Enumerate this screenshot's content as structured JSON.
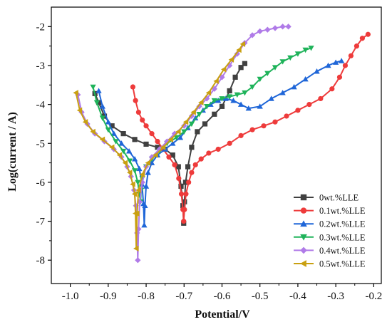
{
  "chart_data": {
    "type": "line",
    "xlabel": "Potential/V",
    "ylabel": "Log(current / A)",
    "xlim": [
      -1.05,
      -0.18
    ],
    "ylim": [
      -8.6,
      -1.5
    ],
    "x_ticks": [
      -1.0,
      -0.9,
      -0.8,
      -0.7,
      -0.6,
      -0.5,
      -0.4,
      -0.3,
      -0.2
    ],
    "x_tick_labels": [
      "-1.0",
      "-0.9",
      "-0.8",
      "-0.7",
      "-0.6",
      "-0.5",
      "-0.4",
      "-0.3",
      "-0.2"
    ],
    "y_ticks": [
      -8,
      -7,
      -6,
      -5,
      -4,
      -3,
      -2
    ],
    "y_tick_labels": [
      "-8",
      "-7",
      "-6",
      "-5",
      "-4",
      "-3",
      "-2"
    ],
    "legend_position": "bottom-right",
    "grid": false,
    "series": [
      {
        "name": "0wt.%LLE",
        "color": "#404040",
        "marker": "square",
        "points": [
          [
            -0.935,
            -3.72
          ],
          [
            -0.925,
            -3.95
          ],
          [
            -0.91,
            -4.3
          ],
          [
            -0.89,
            -4.55
          ],
          [
            -0.86,
            -4.75
          ],
          [
            -0.83,
            -4.9
          ],
          [
            -0.8,
            -5.02
          ],
          [
            -0.77,
            -5.1
          ],
          [
            -0.75,
            -5.15
          ],
          [
            -0.73,
            -5.3
          ],
          [
            -0.715,
            -5.6
          ],
          [
            -0.708,
            -6.1
          ],
          [
            -0.703,
            -6.6
          ],
          [
            -0.701,
            -7.05
          ],
          [
            -0.699,
            -6.5
          ],
          [
            -0.696,
            -6.0
          ],
          [
            -0.69,
            -5.6
          ],
          [
            -0.68,
            -5.1
          ],
          [
            -0.665,
            -4.7
          ],
          [
            -0.645,
            -4.5
          ],
          [
            -0.62,
            -4.25
          ],
          [
            -0.6,
            -4.05
          ],
          [
            -0.58,
            -3.65
          ],
          [
            -0.565,
            -3.3
          ],
          [
            -0.55,
            -3.05
          ],
          [
            -0.54,
            -2.95
          ]
        ]
      },
      {
        "name": "0.1wt.%LLE",
        "color": "#ee3b3b",
        "marker": "circle",
        "points": [
          [
            -0.835,
            -3.55
          ],
          [
            -0.828,
            -3.9
          ],
          [
            -0.82,
            -4.2
          ],
          [
            -0.81,
            -4.4
          ],
          [
            -0.8,
            -4.55
          ],
          [
            -0.785,
            -4.75
          ],
          [
            -0.77,
            -4.95
          ],
          [
            -0.755,
            -5.15
          ],
          [
            -0.74,
            -5.35
          ],
          [
            -0.725,
            -5.55
          ],
          [
            -0.714,
            -5.9
          ],
          [
            -0.707,
            -6.3
          ],
          [
            -0.703,
            -6.7
          ],
          [
            -0.701,
            -7.0
          ],
          [
            -0.699,
            -6.7
          ],
          [
            -0.695,
            -6.3
          ],
          [
            -0.688,
            -6.0
          ],
          [
            -0.68,
            -5.75
          ],
          [
            -0.67,
            -5.55
          ],
          [
            -0.655,
            -5.4
          ],
          [
            -0.635,
            -5.25
          ],
          [
            -0.61,
            -5.15
          ],
          [
            -0.58,
            -5.0
          ],
          [
            -0.55,
            -4.8
          ],
          [
            -0.52,
            -4.65
          ],
          [
            -0.49,
            -4.55
          ],
          [
            -0.46,
            -4.45
          ],
          [
            -0.43,
            -4.3
          ],
          [
            -0.4,
            -4.15
          ],
          [
            -0.37,
            -4.0
          ],
          [
            -0.34,
            -3.85
          ],
          [
            -0.31,
            -3.6
          ],
          [
            -0.29,
            -3.3
          ],
          [
            -0.275,
            -3.0
          ],
          [
            -0.26,
            -2.75
          ],
          [
            -0.245,
            -2.5
          ],
          [
            -0.23,
            -2.3
          ],
          [
            -0.215,
            -2.2
          ]
        ]
      },
      {
        "name": "0.2wt.%LLE",
        "color": "#1f66d8",
        "marker": "triangle-up",
        "points": [
          [
            -0.925,
            -3.65
          ],
          [
            -0.915,
            -4.05
          ],
          [
            -0.9,
            -4.45
          ],
          [
            -0.885,
            -4.75
          ],
          [
            -0.865,
            -5.0
          ],
          [
            -0.845,
            -5.2
          ],
          [
            -0.83,
            -5.4
          ],
          [
            -0.818,
            -5.65
          ],
          [
            -0.811,
            -6.05
          ],
          [
            -0.807,
            -6.55
          ],
          [
            -0.805,
            -7.1
          ],
          [
            -0.803,
            -6.6
          ],
          [
            -0.8,
            -6.1
          ],
          [
            -0.795,
            -5.75
          ],
          [
            -0.785,
            -5.5
          ],
          [
            -0.77,
            -5.3
          ],
          [
            -0.75,
            -5.15
          ],
          [
            -0.73,
            -5.0
          ],
          [
            -0.71,
            -4.85
          ],
          [
            -0.69,
            -4.6
          ],
          [
            -0.67,
            -4.35
          ],
          [
            -0.65,
            -4.15
          ],
          [
            -0.63,
            -4.0
          ],
          [
            -0.61,
            -3.9
          ],
          [
            -0.59,
            -3.85
          ],
          [
            -0.57,
            -3.9
          ],
          [
            -0.55,
            -4.0
          ],
          [
            -0.53,
            -4.1
          ],
          [
            -0.5,
            -4.05
          ],
          [
            -0.47,
            -3.85
          ],
          [
            -0.44,
            -3.7
          ],
          [
            -0.41,
            -3.55
          ],
          [
            -0.38,
            -3.35
          ],
          [
            -0.35,
            -3.15
          ],
          [
            -0.32,
            -3.0
          ],
          [
            -0.3,
            -2.92
          ],
          [
            -0.285,
            -2.88
          ]
        ]
      },
      {
        "name": "0.3wt.%LLE",
        "color": "#1fb35a",
        "marker": "triangle-down",
        "points": [
          [
            -0.94,
            -3.55
          ],
          [
            -0.93,
            -3.95
          ],
          [
            -0.915,
            -4.35
          ],
          [
            -0.9,
            -4.65
          ],
          [
            -0.88,
            -4.95
          ],
          [
            -0.86,
            -5.2
          ],
          [
            -0.843,
            -5.45
          ],
          [
            -0.83,
            -5.7
          ],
          [
            -0.822,
            -6.0
          ],
          [
            -0.818,
            -6.3
          ],
          [
            -0.815,
            -6.5
          ],
          [
            -0.813,
            -6.2
          ],
          [
            -0.81,
            -5.9
          ],
          [
            -0.8,
            -5.6
          ],
          [
            -0.785,
            -5.4
          ],
          [
            -0.765,
            -5.2
          ],
          [
            -0.745,
            -5.0
          ],
          [
            -0.72,
            -4.85
          ],
          [
            -0.7,
            -4.7
          ],
          [
            -0.68,
            -4.5
          ],
          [
            -0.66,
            -4.25
          ],
          [
            -0.64,
            -4.05
          ],
          [
            -0.62,
            -3.9
          ],
          [
            -0.6,
            -3.85
          ],
          [
            -0.58,
            -3.8
          ],
          [
            -0.56,
            -3.75
          ],
          [
            -0.54,
            -3.7
          ],
          [
            -0.52,
            -3.55
          ],
          [
            -0.5,
            -3.35
          ],
          [
            -0.48,
            -3.2
          ],
          [
            -0.46,
            -3.05
          ],
          [
            -0.44,
            -2.9
          ],
          [
            -0.42,
            -2.8
          ],
          [
            -0.4,
            -2.7
          ],
          [
            -0.38,
            -2.6
          ],
          [
            -0.365,
            -2.55
          ]
        ]
      },
      {
        "name": "0.4wt.%LLE",
        "color": "#b07be8",
        "marker": "diamond",
        "points": [
          [
            -0.98,
            -3.75
          ],
          [
            -0.97,
            -4.2
          ],
          [
            -0.955,
            -4.5
          ],
          [
            -0.935,
            -4.75
          ],
          [
            -0.91,
            -4.95
          ],
          [
            -0.885,
            -5.15
          ],
          [
            -0.865,
            -5.35
          ],
          [
            -0.85,
            -5.6
          ],
          [
            -0.84,
            -5.85
          ],
          [
            -0.832,
            -6.2
          ],
          [
            -0.827,
            -6.6
          ],
          [
            -0.824,
            -7.3
          ],
          [
            -0.822,
            -8.0
          ],
          [
            -0.82,
            -7.2
          ],
          [
            -0.817,
            -6.5
          ],
          [
            -0.81,
            -6.0
          ],
          [
            -0.8,
            -5.6
          ],
          [
            -0.785,
            -5.35
          ],
          [
            -0.765,
            -5.15
          ],
          [
            -0.745,
            -4.95
          ],
          [
            -0.725,
            -4.75
          ],
          [
            -0.7,
            -4.55
          ],
          [
            -0.68,
            -4.3
          ],
          [
            -0.66,
            -4.05
          ],
          [
            -0.64,
            -3.85
          ],
          [
            -0.62,
            -3.6
          ],
          [
            -0.6,
            -3.3
          ],
          [
            -0.58,
            -3.0
          ],
          [
            -0.56,
            -2.7
          ],
          [
            -0.54,
            -2.42
          ],
          [
            -0.52,
            -2.22
          ],
          [
            -0.5,
            -2.12
          ],
          [
            -0.48,
            -2.08
          ],
          [
            -0.46,
            -2.04
          ],
          [
            -0.44,
            -2.0
          ],
          [
            -0.425,
            -2.0
          ]
        ]
      },
      {
        "name": "0.5wt.%LLE",
        "color": "#c9a011",
        "marker": "triangle-left",
        "points": [
          [
            -0.985,
            -3.7
          ],
          [
            -0.975,
            -4.15
          ],
          [
            -0.96,
            -4.45
          ],
          [
            -0.94,
            -4.7
          ],
          [
            -0.915,
            -4.9
          ],
          [
            -0.89,
            -5.1
          ],
          [
            -0.87,
            -5.3
          ],
          [
            -0.855,
            -5.5
          ],
          [
            -0.843,
            -5.75
          ],
          [
            -0.835,
            -6.05
          ],
          [
            -0.83,
            -6.3
          ],
          [
            -0.828,
            -6.8
          ],
          [
            -0.826,
            -7.7
          ],
          [
            -0.824,
            -6.8
          ],
          [
            -0.82,
            -6.2
          ],
          [
            -0.81,
            -5.8
          ],
          [
            -0.795,
            -5.5
          ],
          [
            -0.775,
            -5.3
          ],
          [
            -0.755,
            -5.1
          ],
          [
            -0.735,
            -4.9
          ],
          [
            -0.715,
            -4.7
          ],
          [
            -0.695,
            -4.45
          ],
          [
            -0.675,
            -4.2
          ],
          [
            -0.655,
            -3.95
          ],
          [
            -0.635,
            -3.7
          ],
          [
            -0.615,
            -3.4
          ],
          [
            -0.595,
            -3.1
          ],
          [
            -0.575,
            -2.85
          ],
          [
            -0.555,
            -2.6
          ],
          [
            -0.545,
            -2.45
          ]
        ]
      }
    ]
  }
}
